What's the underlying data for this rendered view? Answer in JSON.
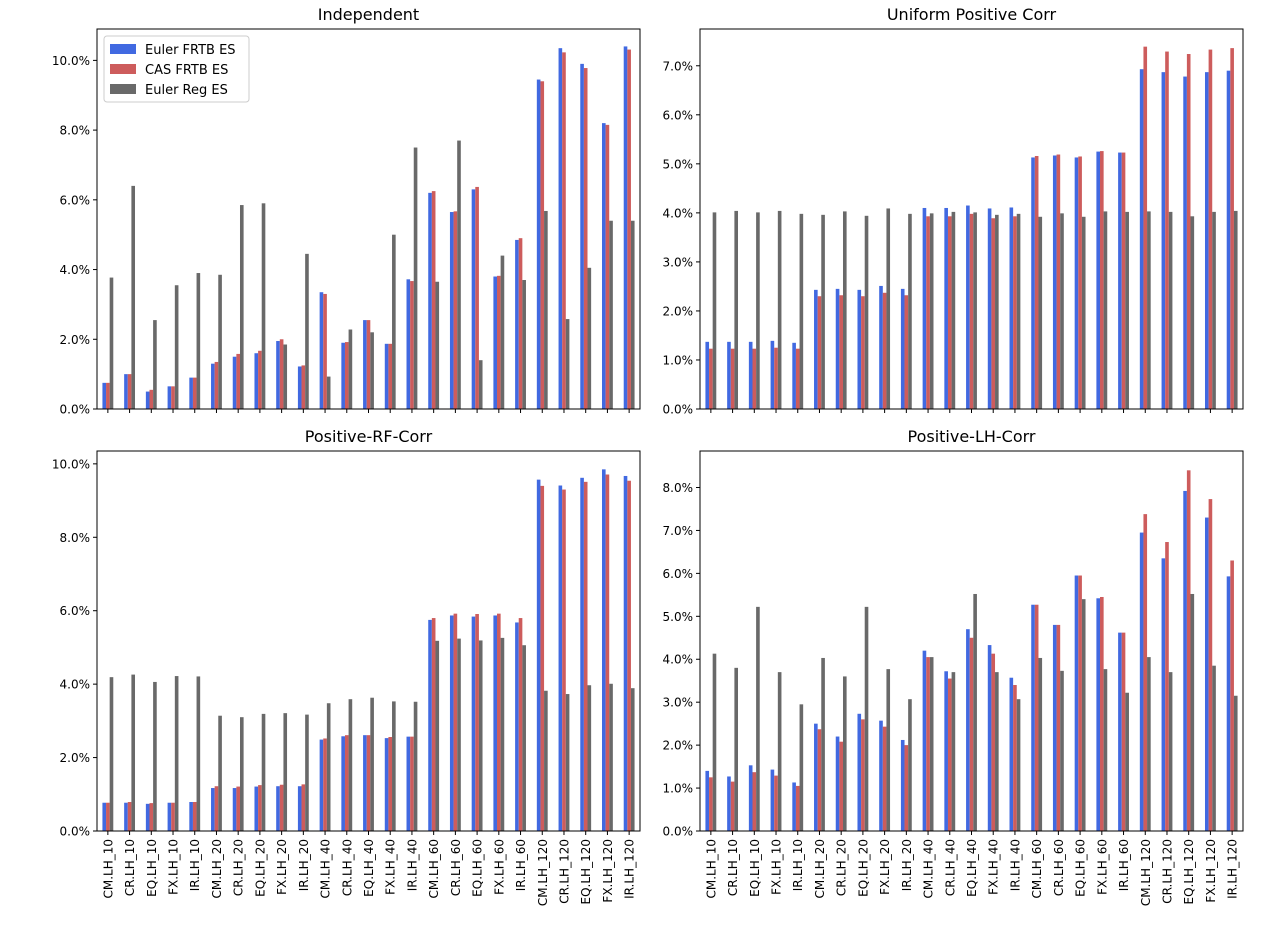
{
  "colors": {
    "euler_frtb": "#4169E1",
    "cas_frtb": "#CD5C5C",
    "euler_reg": "#696969"
  },
  "categories": [
    "CM.LH_10",
    "CR.LH_10",
    "EQ.LH_10",
    "FX.LH_10",
    "IR.LH_10",
    "CM.LH_20",
    "CR.LH_20",
    "EQ.LH_20",
    "FX.LH_20",
    "IR.LH_20",
    "CM.LH_40",
    "CR.LH_40",
    "EQ.LH_40",
    "FX.LH_40",
    "IR.LH_40",
    "CM.LH_60",
    "CR.LH_60",
    "EQ.LH_60",
    "FX.LH_60",
    "IR.LH_60",
    "CM.LH_120",
    "CR.LH_120",
    "EQ.LH_120",
    "FX.LH_120",
    "IR.LH_120"
  ],
  "legend": {
    "position": "upper-left",
    "entries": [
      "Euler FRTB ES",
      "CAS FRTB ES",
      "Euler Reg ES"
    ]
  },
  "chart_data": [
    {
      "type": "bar",
      "title": "Independent",
      "ylim": [
        0,
        0.109
      ],
      "yticks": [
        0,
        0.02,
        0.04,
        0.06,
        0.08,
        0.1
      ],
      "ytick_labels": [
        "0.0%",
        "2.0%",
        "4.0%",
        "6.0%",
        "8.0%",
        "10.0%"
      ],
      "show_xlabels": false,
      "show_legend": true,
      "series": [
        {
          "name": "Euler FRTB ES",
          "values": [
            0.0075,
            0.01,
            0.005,
            0.0065,
            0.009,
            0.013,
            0.015,
            0.016,
            0.0195,
            0.0122,
            0.0335,
            0.019,
            0.0255,
            0.0187,
            0.0372,
            0.062,
            0.0565,
            0.063,
            0.038,
            0.0485,
            0.0945,
            0.1035,
            0.099,
            0.082,
            0.104
          ]
        },
        {
          "name": "CAS FRTB ES",
          "values": [
            0.0075,
            0.01,
            0.0055,
            0.0065,
            0.009,
            0.0135,
            0.0158,
            0.0167,
            0.02,
            0.0125,
            0.033,
            0.0192,
            0.0255,
            0.0187,
            0.0367,
            0.0625,
            0.0567,
            0.0637,
            0.0382,
            0.049,
            0.094,
            0.1023,
            0.0978,
            0.0815,
            0.1031
          ]
        },
        {
          "name": "Euler Reg ES",
          "values": [
            0.0377,
            0.064,
            0.0255,
            0.0355,
            0.039,
            0.0385,
            0.0585,
            0.059,
            0.0185,
            0.0445,
            0.0093,
            0.0228,
            0.022,
            0.05,
            0.075,
            0.0365,
            0.077,
            0.014,
            0.044,
            0.037,
            0.0568,
            0.0258,
            0.0405,
            0.054,
            0.054
          ]
        }
      ]
    },
    {
      "type": "bar",
      "title": "Uniform Positive Corr",
      "ylim": [
        0,
        0.0775
      ],
      "yticks": [
        0,
        0.01,
        0.02,
        0.03,
        0.04,
        0.05,
        0.06,
        0.07
      ],
      "ytick_labels": [
        "0.0%",
        "1.0%",
        "2.0%",
        "3.0%",
        "4.0%",
        "5.0%",
        "6.0%",
        "7.0%"
      ],
      "show_xlabels": false,
      "show_legend": false,
      "series": [
        {
          "name": "Euler FRTB ES",
          "values": [
            0.0137,
            0.0137,
            0.0137,
            0.0139,
            0.0135,
            0.0243,
            0.0245,
            0.0243,
            0.0251,
            0.0245,
            0.041,
            0.041,
            0.0415,
            0.0409,
            0.0411,
            0.0513,
            0.0517,
            0.0513,
            0.0525,
            0.0523,
            0.0693,
            0.0687,
            0.0678,
            0.0687,
            0.069
          ]
        },
        {
          "name": "CAS FRTB ES",
          "values": [
            0.0123,
            0.0123,
            0.0123,
            0.0125,
            0.0123,
            0.023,
            0.0232,
            0.023,
            0.0237,
            0.0232,
            0.0393,
            0.0393,
            0.0398,
            0.0389,
            0.0393,
            0.0516,
            0.0519,
            0.0515,
            0.0526,
            0.0523,
            0.0739,
            0.0729,
            0.0724,
            0.0733,
            0.0736
          ]
        },
        {
          "name": "Euler Reg ES",
          "values": [
            0.0401,
            0.0404,
            0.0401,
            0.0404,
            0.0398,
            0.0396,
            0.0403,
            0.0394,
            0.0409,
            0.0398,
            0.0399,
            0.0402,
            0.0401,
            0.0396,
            0.0398,
            0.0392,
            0.0399,
            0.0392,
            0.0403,
            0.0402,
            0.0403,
            0.0402,
            0.0393,
            0.0402,
            0.0404
          ]
        }
      ]
    },
    {
      "type": "bar",
      "title": "Positive-RF-Corr",
      "ylim": [
        0,
        0.1035
      ],
      "yticks": [
        0,
        0.02,
        0.04,
        0.06,
        0.08,
        0.1
      ],
      "ytick_labels": [
        "0.0%",
        "2.0%",
        "4.0%",
        "6.0%",
        "8.0%",
        "10.0%"
      ],
      "show_xlabels": true,
      "show_legend": false,
      "series": [
        {
          "name": "Euler FRTB ES",
          "values": [
            0.0077,
            0.0077,
            0.0074,
            0.0077,
            0.0079,
            0.0117,
            0.0117,
            0.0121,
            0.0122,
            0.0122,
            0.0249,
            0.0258,
            0.0261,
            0.0253,
            0.0257,
            0.0575,
            0.0587,
            0.0584,
            0.0587,
            0.0568,
            0.0957,
            0.0941,
            0.0962,
            0.0985,
            0.0967
          ]
        },
        {
          "name": "CAS FRTB ES",
          "values": [
            0.0077,
            0.0079,
            0.0076,
            0.0077,
            0.0079,
            0.0122,
            0.0121,
            0.0125,
            0.0126,
            0.0127,
            0.0252,
            0.0261,
            0.0261,
            0.0256,
            0.0257,
            0.058,
            0.0592,
            0.0591,
            0.0592,
            0.058,
            0.094,
            0.093,
            0.0951,
            0.0971,
            0.0954
          ]
        },
        {
          "name": "Euler Reg ES",
          "values": [
            0.0419,
            0.0426,
            0.0406,
            0.0422,
            0.0421,
            0.0314,
            0.031,
            0.0319,
            0.0321,
            0.0317,
            0.0348,
            0.0359,
            0.0363,
            0.0353,
            0.0352,
            0.0518,
            0.0524,
            0.0519,
            0.0526,
            0.0506,
            0.0382,
            0.0373,
            0.0397,
            0.0401,
            0.0389
          ]
        }
      ]
    },
    {
      "type": "bar",
      "title": "Positive-LH-Corr",
      "ylim": [
        0,
        0.0885
      ],
      "yticks": [
        0,
        0.01,
        0.02,
        0.03,
        0.04,
        0.05,
        0.06,
        0.07,
        0.08
      ],
      "ytick_labels": [
        "0.0%",
        "1.0%",
        "2.0%",
        "3.0%",
        "4.0%",
        "5.0%",
        "6.0%",
        "7.0%",
        "8.0%"
      ],
      "show_xlabels": true,
      "show_legend": false,
      "series": [
        {
          "name": "Euler FRTB ES",
          "values": [
            0.014,
            0.0127,
            0.0153,
            0.0143,
            0.0113,
            0.025,
            0.022,
            0.0273,
            0.0257,
            0.0212,
            0.042,
            0.0372,
            0.047,
            0.0433,
            0.0357,
            0.0527,
            0.048,
            0.0595,
            0.0542,
            0.0462,
            0.0695,
            0.0635,
            0.0792,
            0.073,
            0.0593
          ]
        },
        {
          "name": "CAS FRTB ES",
          "values": [
            0.0125,
            0.0115,
            0.0137,
            0.0129,
            0.0105,
            0.0237,
            0.0208,
            0.026,
            0.0243,
            0.02,
            0.0405,
            0.0355,
            0.045,
            0.0413,
            0.034,
            0.0527,
            0.048,
            0.0595,
            0.0545,
            0.0462,
            0.0738,
            0.0673,
            0.084,
            0.0773,
            0.063
          ]
        },
        {
          "name": "Euler Reg ES",
          "values": [
            0.0413,
            0.038,
            0.0522,
            0.037,
            0.0295,
            0.0403,
            0.036,
            0.0522,
            0.0377,
            0.0307,
            0.0405,
            0.037,
            0.0552,
            0.037,
            0.0307,
            0.0403,
            0.0373,
            0.054,
            0.0377,
            0.0322,
            0.0405,
            0.037,
            0.0552,
            0.0385,
            0.0315
          ]
        }
      ]
    }
  ]
}
